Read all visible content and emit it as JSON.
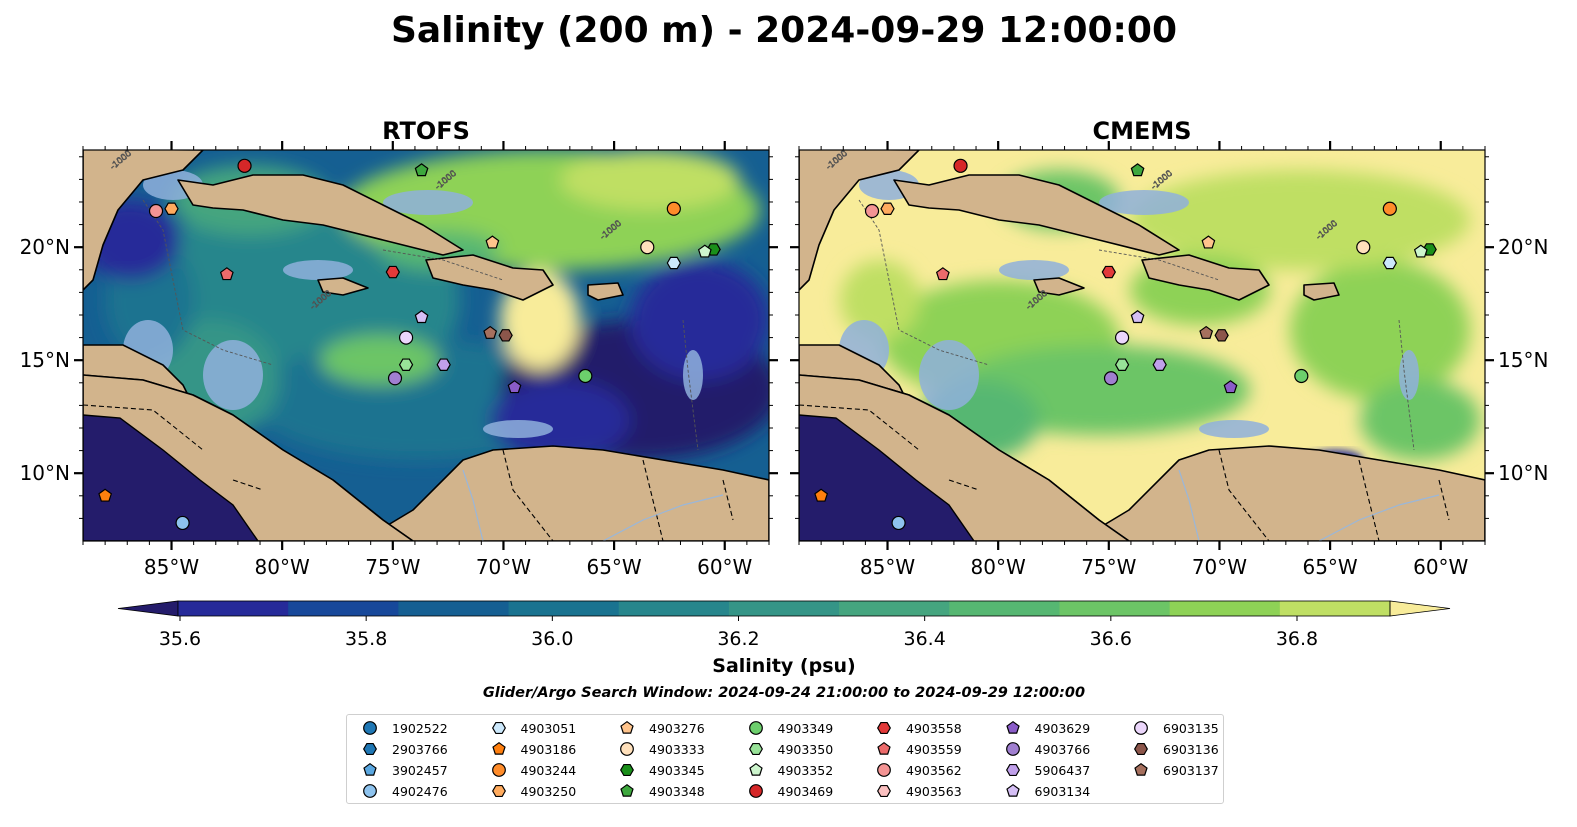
{
  "figure": {
    "title": "Salinity (200 m) - 2024-09-29 12:00:00",
    "subtitle": "Glider/Argo Search Window: 2024-09-24 21:00:00 to 2024-09-29 12:00:00"
  },
  "chart_data": [
    {
      "type": "heatmap",
      "panel": "RTOFS",
      "title": "RTOFS",
      "x_ticks": [
        "85°W",
        "80°W",
        "75°W",
        "70°W",
        "65°W",
        "60°W"
      ],
      "y_ticks": [
        "10°N",
        "15°N",
        "20°N"
      ],
      "xlim": [
        -89,
        -58
      ],
      "ylim": [
        7,
        24.3
      ],
      "y_axis_side": "left",
      "contour_label": "-1000",
      "field_character": "fresher (35.6–36.2 psu) across central/eastern Caribbean; saltier (>36.6) near Antilles and Atlantic eddies"
    },
    {
      "type": "heatmap",
      "panel": "CMEMS",
      "title": "CMEMS",
      "x_ticks": [
        "85°W",
        "80°W",
        "75°W",
        "70°W",
        "65°W",
        "60°W"
      ],
      "y_ticks": [
        "10°N",
        "15°N",
        "20°N"
      ],
      "xlim": [
        -89,
        -58
      ],
      "ylim": [
        7,
        24.3
      ],
      "y_axis_side": "right",
      "contour_label": "-1000",
      "field_character": "mostly salty (>36.5 psu) across the basin; fresh water only in eastern Pacific and a small patch off Venezuela"
    }
  ],
  "colorbar": {
    "label": "Salinity (psu)",
    "min": 35.5,
    "max": 36.9,
    "ticks": [
      "35.6",
      "35.8",
      "36.0",
      "36.2",
      "36.4",
      "36.6",
      "36.8"
    ],
    "tick_values": [
      35.6,
      35.8,
      36.0,
      36.2,
      36.4,
      36.6,
      36.8
    ],
    "colors": [
      "#241c6b",
      "#262a99",
      "#17489a",
      "#155f92",
      "#1a7390",
      "#27868c",
      "#359587",
      "#45a57f",
      "#56b772",
      "#6cc566",
      "#8ed256",
      "#bfdf64",
      "#f8ec9a"
    ],
    "extend": "both"
  },
  "floats": [
    {
      "id": "1902522",
      "marker": "circle",
      "color": "#1f77b4"
    },
    {
      "id": "2903766",
      "marker": "hexagon",
      "color": "#1f77b4"
    },
    {
      "id": "3902457",
      "marker": "pentagon",
      "color": "#5aa7e0"
    },
    {
      "id": "4902476",
      "marker": "circle",
      "color": "#8ec3ee",
      "lon": -84.5,
      "lat": 7.8
    },
    {
      "id": "4903051",
      "marker": "hexagon",
      "color": "#cce8fb",
      "lon": -62.3,
      "lat": 19.3
    },
    {
      "id": "4903186",
      "marker": "pentagon",
      "color": "#ff7f0e",
      "lon": -88,
      "lat": 9.0
    },
    {
      "id": "4903244",
      "marker": "circle",
      "color": "#ff8c2a",
      "lon": -62.3,
      "lat": 21.7
    },
    {
      "id": "4903250",
      "marker": "hexagon",
      "color": "#ffab5e",
      "lon": -85,
      "lat": 21.7
    },
    {
      "id": "4903276",
      "marker": "pentagon",
      "color": "#ffc48c",
      "lon": -70.5,
      "lat": 20.2
    },
    {
      "id": "4903333",
      "marker": "circle",
      "color": "#ffe0bb",
      "lon": -63.5,
      "lat": 20.0
    },
    {
      "id": "4903345",
      "marker": "hexagon",
      "color": "#1a8f1a",
      "lon": -60.5,
      "lat": 19.9
    },
    {
      "id": "4903348",
      "marker": "pentagon",
      "color": "#3ea83e",
      "lon": -73.7,
      "lat": 23.4
    },
    {
      "id": "4903349",
      "marker": "circle",
      "color": "#6ccf6c",
      "lon": -66.3,
      "lat": 14.3
    },
    {
      "id": "4903350",
      "marker": "hexagon",
      "color": "#98e298",
      "lon": -74.4,
      "lat": 14.8
    },
    {
      "id": "4903352",
      "marker": "pentagon",
      "color": "#cdf5cd",
      "lon": -60.9,
      "lat": 19.8
    },
    {
      "id": "4903469",
      "marker": "circle",
      "color": "#d62728",
      "lon": -81.7,
      "lat": 23.6
    },
    {
      "id": "4903558",
      "marker": "hexagon",
      "color": "#e23a3a",
      "lon": -75.0,
      "lat": 18.9
    },
    {
      "id": "4903559",
      "marker": "pentagon",
      "color": "#ec6b6b",
      "lon": -82.5,
      "lat": 18.8
    },
    {
      "id": "4903562",
      "marker": "circle",
      "color": "#f49494",
      "lon": -85.7,
      "lat": 21.6
    },
    {
      "id": "4903563",
      "marker": "hexagon",
      "color": "#fbc0c0"
    },
    {
      "id": "4903629",
      "marker": "pentagon",
      "color": "#8a5cc8",
      "lon": -69.5,
      "lat": 13.8
    },
    {
      "id": "4903766",
      "marker": "circle",
      "color": "#a07fd0",
      "lon": -74.9,
      "lat": 14.2
    },
    {
      "id": "5906437",
      "marker": "hexagon",
      "color": "#c0a0ea",
      "lon": -72.7,
      "lat": 14.8
    },
    {
      "id": "6903134",
      "marker": "pentagon",
      "color": "#d5bff5",
      "lon": -73.7,
      "lat": 16.9
    },
    {
      "id": "6903135",
      "marker": "circle",
      "color": "#ebd6fb",
      "lon": -74.4,
      "lat": 16.0
    },
    {
      "id": "6903136",
      "marker": "hexagon",
      "color": "#8c564b",
      "lon": -69.9,
      "lat": 16.1
    },
    {
      "id": "6903137",
      "marker": "pentagon",
      "color": "#a6705e",
      "lon": -70.6,
      "lat": 16.2
    }
  ]
}
